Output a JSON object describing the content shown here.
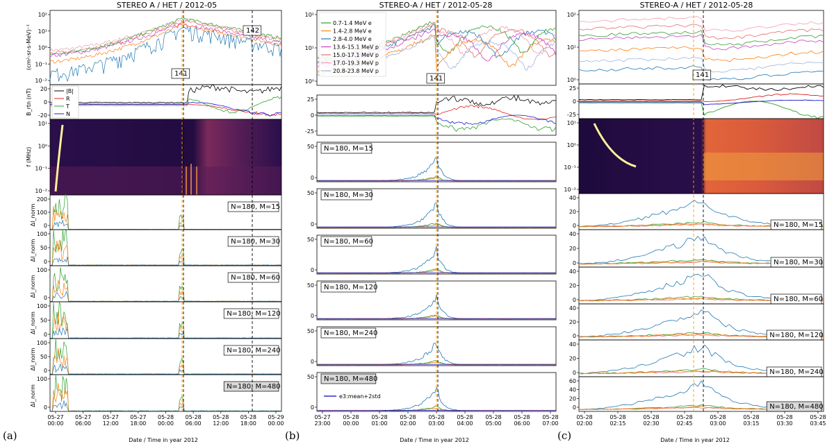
{
  "figure": {
    "panel_labels": [
      "(a)",
      "(b)",
      "(c)"
    ],
    "xlabel": "Date / Time in year 2012",
    "colors": {
      "e1": "#2ca02c",
      "e2": "#ff7f0e",
      "e3": "#1f77b4",
      "p1": "#c83cc8",
      "p2": "#e07070",
      "p3": "#f0a0b0",
      "p4": "#9fb4d8",
      "mag_B": "#000000",
      "mag_R": "#e02020",
      "mag_T": "#2ca02c",
      "mag_N": "#1a1ad0",
      "threshold": "#0000cc",
      "event_orange": "#ff9900",
      "event_black": "#000000",
      "spectrogram_high": "#fff29a",
      "spectrogram_mid": "#e05a3c",
      "spectrogram_low": "#1a0b3e"
    }
  },
  "chart_data": [
    {
      "type": "line",
      "id": "a",
      "title": "STEREO A / HET / 2012-05",
      "x_tick_labels": [
        [
          "05-27",
          "00:00"
        ],
        [
          "05-27",
          "06:00"
        ],
        [
          "05-27",
          "12:00"
        ],
        [
          "05-27",
          "18:00"
        ],
        [
          "05-28",
          "00:00"
        ],
        [
          "05-28",
          "06:00"
        ],
        [
          "05-28",
          "12:00"
        ],
        [
          "05-28",
          "18:00"
        ],
        [
          "05-29",
          "00:00"
        ]
      ],
      "event_labels": [
        "141",
        "142"
      ],
      "flux": {
        "ylabel": "(cm²-sr-s-MeV)⁻¹",
        "yscale": "log",
        "ylim": [
          0.01,
          300
        ],
        "y_tick_labels": [
          "10⁻²",
          "10⁻¹",
          "10⁰",
          "10¹",
          "10²"
        ]
      },
      "mag": {
        "ylabel": "B_rtn (nT)",
        "ylim": [
          -30,
          40
        ],
        "y_tick_labels": [
          "20",
          "0",
          "-20"
        ],
        "legend": [
          "|B|",
          "R",
          "T",
          "N"
        ]
      },
      "radio": {
        "ylabel": "f (MHz)",
        "yscale": "log",
        "ylim": [
          0.01,
          16
        ],
        "y_tick_labels": [
          "10¹",
          "10⁰",
          "10⁻¹",
          "10⁻²"
        ]
      },
      "subpanels": [
        {
          "label": "N=180, M=15",
          "ylim": [
            0,
            240
          ],
          "y_tick_labels": [
            "200",
            "100",
            "0"
          ]
        },
        {
          "label": "N=180, M=30",
          "ylim": [
            0,
            120
          ],
          "y_tick_labels": [
            "100",
            "50",
            "0"
          ]
        },
        {
          "label": "N=180, M=60",
          "ylim": [
            0,
            140
          ],
          "y_tick_labels": [
            "100",
            "0"
          ]
        },
        {
          "label": "N=180, M=120",
          "ylim": [
            0,
            140
          ],
          "y_tick_labels": [
            "100",
            "50",
            "0"
          ]
        },
        {
          "label": "N=180, M=240",
          "ylim": [
            0,
            120
          ],
          "y_tick_labels": [
            "100",
            "50",
            "0"
          ]
        },
        {
          "label": "N=180, M=480",
          "ylim": [
            0,
            140
          ],
          "y_tick_labels": [
            "100",
            "0"
          ]
        }
      ],
      "sub_ylabel": "ΔI_norm"
    },
    {
      "type": "line",
      "id": "b",
      "title": "STEREO-A / HET / 2012-05-28",
      "x_tick_labels": [
        [
          "05-27",
          "23:00"
        ],
        [
          "05-28",
          "00:00"
        ],
        [
          "05-28",
          "01:00"
        ],
        [
          "05-28",
          "02:00"
        ],
        [
          "05-28",
          "03:00"
        ],
        [
          "05-28",
          "04:00"
        ],
        [
          "05-28",
          "05:00"
        ],
        [
          "05-28",
          "06:00"
        ],
        [
          "05-28",
          "07:00"
        ]
      ],
      "event_labels": [
        "141"
      ],
      "flux": {
        "yscale": "log",
        "ylim": [
          0.3,
          300
        ],
        "y_tick_labels": [
          "10⁰",
          "10¹",
          "10²"
        ]
      },
      "legend": [
        "0.7-1.4 MeV e",
        "1.4-2.8 MeV e",
        "2.8-4.0 MeV e",
        "13.6-15.1 MeV p",
        "15.0-17.1 MeV p",
        "17.0-19.3 MeV p",
        "20.8-23.8 MeV p"
      ],
      "mag": {
        "ylim": [
          -45,
          45
        ],
        "y_tick_labels": [
          "25",
          "0",
          "-25"
        ]
      },
      "subpanels": [
        {
          "label": "N=180, M=15",
          "ylim": [
            0,
            60
          ],
          "y_tick_labels": [
            "50",
            "0"
          ]
        },
        {
          "label": "N=180, M=30",
          "ylim": [
            0,
            60
          ],
          "y_tick_labels": [
            "50",
            "0"
          ]
        },
        {
          "label": "N=180, M=60",
          "ylim": [
            0,
            60
          ],
          "y_tick_labels": [
            "50",
            "0"
          ]
        },
        {
          "label": "N=180, M=120",
          "ylim": [
            0,
            60
          ],
          "y_tick_labels": [
            "50",
            "0"
          ]
        },
        {
          "label": "N=180, M=240",
          "ylim": [
            0,
            60
          ],
          "y_tick_labels": [
            "50",
            "0"
          ]
        },
        {
          "label": "N=180, M=480",
          "ylim": [
            0,
            80
          ],
          "y_tick_labels": [
            "50",
            "0"
          ]
        }
      ],
      "threshold_legend": "e3:mean+2std"
    },
    {
      "type": "line",
      "id": "c",
      "title": "STEREO-A / HET / 2012-05-28",
      "x_tick_labels": [
        [
          "05-28",
          "02:00"
        ],
        [
          "05-28",
          "02:15"
        ],
        [
          "05-28",
          "02:30"
        ],
        [
          "05-28",
          "02:45"
        ],
        [
          "05-28",
          "03:00"
        ],
        [
          "05-28",
          "03:15"
        ],
        [
          "05-28",
          "03:30"
        ],
        [
          "05-28",
          "03:45"
        ]
      ],
      "event_labels": [
        "141"
      ],
      "flux": {
        "yscale": "log",
        "ylim": [
          1,
          300
        ],
        "y_tick_labels": [
          "10⁰",
          "10¹",
          "10²"
        ]
      },
      "mag": {
        "ylim": [
          -35,
          40
        ],
        "y_tick_labels": [
          "25",
          "0",
          "-25"
        ]
      },
      "radio": {
        "yscale": "log",
        "ylim": [
          0.003,
          16
        ],
        "y_tick_labels": [
          "10¹",
          "10⁰",
          "10⁻¹",
          "10⁻²"
        ]
      },
      "subpanels": [
        {
          "label": "N=180, M=15",
          "ylim": [
            0,
            45
          ],
          "y_tick_labels": [
            "40",
            "20",
            "0"
          ]
        },
        {
          "label": "N=180, M=30",
          "ylim": [
            0,
            45
          ],
          "y_tick_labels": [
            "40",
            "20",
            "0"
          ]
        },
        {
          "label": "N=180, M=60",
          "ylim": [
            0,
            45
          ],
          "y_tick_labels": [
            "40",
            "20",
            "0"
          ]
        },
        {
          "label": "N=180, M=120",
          "ylim": [
            0,
            45
          ],
          "y_tick_labels": [
            "40",
            "20",
            "0"
          ]
        },
        {
          "label": "N=180, M=240",
          "ylim": [
            0,
            45
          ],
          "y_tick_labels": [
            "40",
            "20",
            "0"
          ]
        },
        {
          "label": "N=180, M=480",
          "ylim": [
            0,
            70
          ],
          "y_tick_labels": [
            "60",
            "40",
            "20",
            "0"
          ]
        }
      ]
    }
  ]
}
